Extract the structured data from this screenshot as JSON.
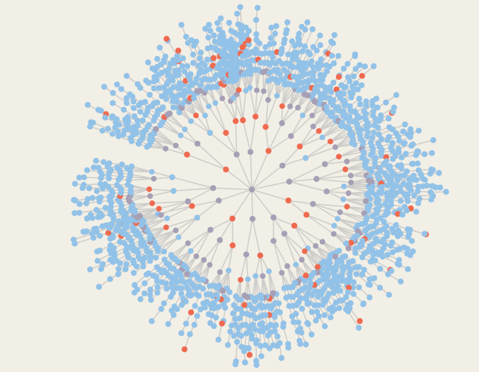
{
  "diagram": {
    "type": "radial-tree-network",
    "background": "#f2efe6",
    "colors": {
      "link": "#cfcdca",
      "leaf": "#92c2e8",
      "internal": "#a79fb5",
      "highlight": "#f06a4f"
    },
    "node_kinds": [
      "leaf",
      "internal",
      "highlight"
    ]
  }
}
